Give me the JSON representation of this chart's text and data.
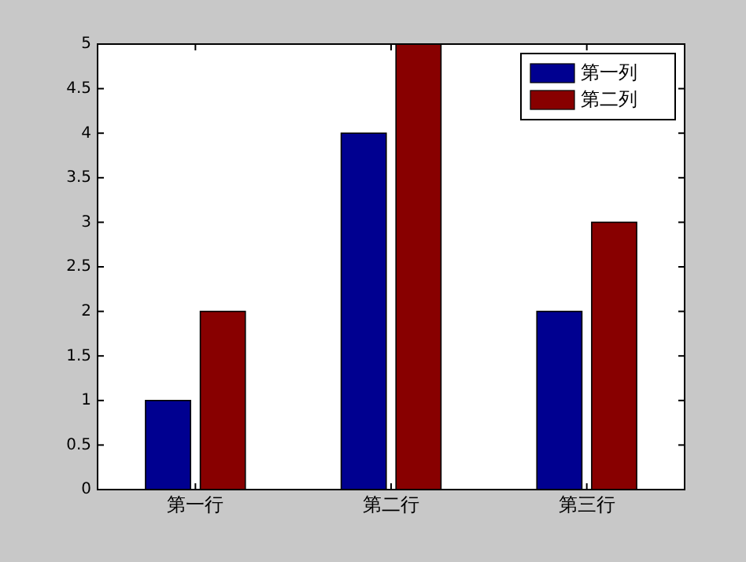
{
  "chart_data": {
    "type": "bar",
    "categories": [
      "第一行",
      "第二行",
      "第三行"
    ],
    "series": [
      {
        "name": "第一列",
        "color": "#000090",
        "values": [
          1,
          4,
          2
        ]
      },
      {
        "name": "第二列",
        "color": "#880000",
        "values": [
          2,
          5,
          3
        ]
      }
    ],
    "ylim": [
      0,
      5
    ],
    "yticks": [
      0,
      0.5,
      1,
      1.5,
      2,
      2.5,
      3,
      3.5,
      4,
      4.5,
      5
    ],
    "grid": false,
    "legend": "top right"
  }
}
